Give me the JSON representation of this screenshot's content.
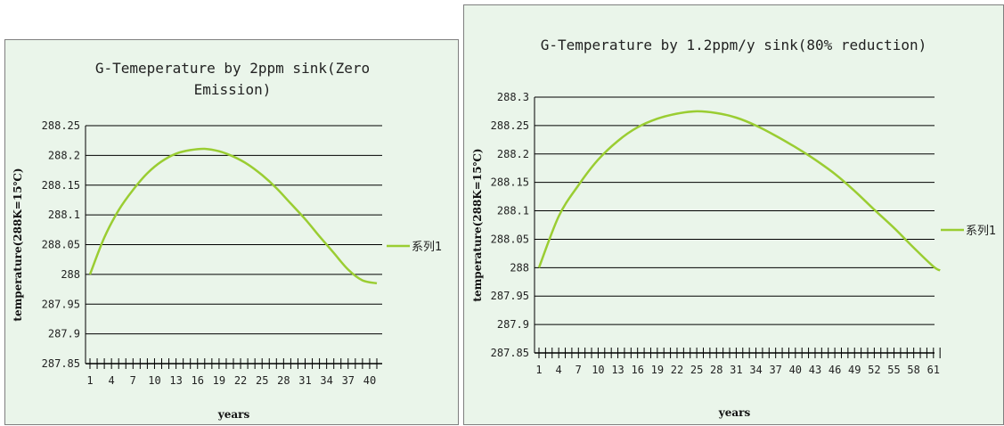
{
  "colors": {
    "series": "#9acd32",
    "panel_bg": "#eaf5ea",
    "grid": "#000000"
  },
  "chart_data": [
    {
      "type": "line",
      "title": "G-Temeperature by 2ppm sink(Zero Emission)",
      "title_lines": [
        "G-Temeperature by 2ppm sink(Zero",
        "Emission)"
      ],
      "xlabel": "years",
      "ylabel": "temperature(288K=15℃)",
      "ylim": [
        287.85,
        288.25
      ],
      "yticks": [
        "288.25",
        "288.2",
        "288.15",
        "288.1",
        "288.05",
        "288",
        "287.95",
        "287.9",
        "287.85"
      ],
      "xlim": [
        1,
        41
      ],
      "xticks": [
        "1",
        "4",
        "7",
        "10",
        "13",
        "16",
        "19",
        "22",
        "25",
        "28",
        "31",
        "34",
        "37",
        "40"
      ],
      "grid": true,
      "legend": "right",
      "series": [
        {
          "name": "系列1",
          "x": [
            1,
            3,
            5,
            7,
            9,
            11,
            13,
            15,
            17,
            19,
            21,
            23,
            25,
            27,
            29,
            31,
            33,
            35,
            37,
            39,
            41
          ],
          "y": [
            288.0,
            288.062,
            288.108,
            288.142,
            288.17,
            288.19,
            288.203,
            288.209,
            288.211,
            288.207,
            288.198,
            288.185,
            288.167,
            288.145,
            288.119,
            288.093,
            288.064,
            288.036,
            288.008,
            287.99,
            287.985
          ]
        }
      ]
    },
    {
      "type": "line",
      "title": "G-Temperature by 1.2ppm/y sink(80% reduction)",
      "title_lines": [
        "G-Temperature by 1.2ppm/y sink(80% reduction)"
      ],
      "xlabel": "years",
      "ylabel": "temperature(288K=15℃)",
      "ylim": [
        287.85,
        288.3
      ],
      "yticks": [
        "288.3",
        "288.25",
        "288.2",
        "288.15",
        "288.1",
        "288.05",
        "288",
        "287.95",
        "287.9",
        "287.85"
      ],
      "xlim": [
        1,
        62
      ],
      "xticks": [
        "1",
        "4",
        "7",
        "10",
        "13",
        "16",
        "19",
        "22",
        "25",
        "28",
        "31",
        "34",
        "37",
        "40",
        "43",
        "46",
        "49",
        "52",
        "55",
        "58",
        "61"
      ],
      "grid": true,
      "legend": "right",
      "series": [
        {
          "name": "系列1",
          "x": [
            1,
            4,
            7,
            10,
            13,
            16,
            19,
            22,
            25,
            28,
            31,
            34,
            37,
            40,
            43,
            46,
            49,
            52,
            55,
            58,
            61,
            62
          ],
          "y": [
            288.0,
            288.09,
            288.145,
            288.19,
            288.223,
            288.247,
            288.262,
            288.271,
            288.275,
            288.272,
            288.264,
            288.25,
            288.232,
            288.212,
            288.19,
            288.165,
            288.135,
            288.102,
            288.07,
            288.035,
            288.002,
            287.995
          ]
        }
      ]
    }
  ]
}
